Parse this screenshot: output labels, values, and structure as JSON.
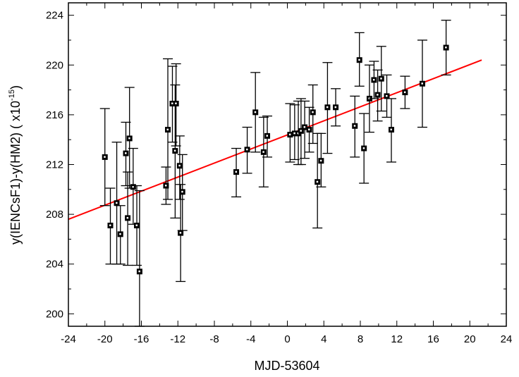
{
  "chart_data": {
    "type": "scatter",
    "title": "",
    "xlabel": "MJD-53604",
    "ylabel_main": "y(IENCsF1)-y(HM2)  ( x10",
    "ylabel_exp": "-15",
    "ylabel_close": ")",
    "xlim": [
      -24,
      24
    ],
    "ylim": [
      199,
      225
    ],
    "xticks": [
      "-24",
      "-20",
      "-16",
      "-12",
      "-8",
      "-4",
      "0",
      "4",
      "8",
      "12",
      "16",
      "20",
      "24"
    ],
    "yticks": [
      "200",
      "204",
      "208",
      "212",
      "216",
      "220",
      "224"
    ],
    "x_minor_step": 2,
    "y_minor_step": 2,
    "grid": false,
    "point_color": "#000000",
    "fit_color": "#ff0000",
    "fit_line": {
      "x": [
        -24,
        21.3
      ],
      "y": [
        207.6,
        220.4
      ]
    },
    "points": [
      {
        "x": -20.0,
        "y": 212.6,
        "ylo": 208.7,
        "yhi": 216.5
      },
      {
        "x": -19.4,
        "y": 207.1,
        "ylo": 204.0,
        "yhi": 210.1
      },
      {
        "x": -18.7,
        "y": 208.9,
        "ylo": 204.0,
        "yhi": 213.8
      },
      {
        "x": -18.3,
        "y": 206.4,
        "ylo": 204.0,
        "yhi": 208.7
      },
      {
        "x": -17.7,
        "y": 212.9,
        "ylo": 210.3,
        "yhi": 215.4
      },
      {
        "x": -17.5,
        "y": 207.7,
        "ylo": 203.9,
        "yhi": 211.4
      },
      {
        "x": -17.3,
        "y": 214.1,
        "ylo": 210.1,
        "yhi": 218.2
      },
      {
        "x": -16.9,
        "y": 210.2,
        "ylo": 207.2,
        "yhi": 213.3
      },
      {
        "x": -16.5,
        "y": 207.1,
        "ylo": 203.9,
        "yhi": 210.3
      },
      {
        "x": -16.2,
        "y": 203.4,
        "ylo": 199.0,
        "yhi": 209.9
      },
      {
        "x": -13.3,
        "y": 210.3,
        "ylo": 208.8,
        "yhi": 211.8
      },
      {
        "x": -13.1,
        "y": 214.8,
        "ylo": 209.2,
        "yhi": 220.5
      },
      {
        "x": -12.6,
        "y": 216.9,
        "ylo": 213.8,
        "yhi": 219.9
      },
      {
        "x": -12.3,
        "y": 213.1,
        "ylo": 207.7,
        "yhi": 218.4
      },
      {
        "x": -12.2,
        "y": 216.9,
        "ylo": 213.5,
        "yhi": 220.1
      },
      {
        "x": -11.8,
        "y": 211.9,
        "ylo": 209.2,
        "yhi": 214.3
      },
      {
        "x": -11.7,
        "y": 206.5,
        "ylo": 202.6,
        "yhi": 210.4
      },
      {
        "x": -11.5,
        "y": 209.8,
        "ylo": 206.7,
        "yhi": 212.8
      },
      {
        "x": -5.6,
        "y": 211.4,
        "ylo": 209.4,
        "yhi": 213.3
      },
      {
        "x": -4.4,
        "y": 213.2,
        "ylo": 211.3,
        "yhi": 215.0
      },
      {
        "x": -3.5,
        "y": 216.2,
        "ylo": 213.0,
        "yhi": 219.4
      },
      {
        "x": -2.6,
        "y": 213.0,
        "ylo": 210.2,
        "yhi": 215.8
      },
      {
        "x": -2.2,
        "y": 214.3,
        "ylo": 212.6,
        "yhi": 215.9
      },
      {
        "x": 0.3,
        "y": 214.4,
        "ylo": 212.2,
        "yhi": 216.9
      },
      {
        "x": 0.8,
        "y": 214.5,
        "ylo": 212.4,
        "yhi": 216.8
      },
      {
        "x": 1.2,
        "y": 214.5,
        "ylo": 212.0,
        "yhi": 217.1
      },
      {
        "x": 1.5,
        "y": 214.7,
        "ylo": 212.0,
        "yhi": 217.3
      },
      {
        "x": 1.9,
        "y": 215.0,
        "ylo": 212.5,
        "yhi": 217.1
      },
      {
        "x": 2.4,
        "y": 214.8,
        "ylo": 213.0,
        "yhi": 216.6
      },
      {
        "x": 2.8,
        "y": 216.2,
        "ylo": 213.7,
        "yhi": 218.4
      },
      {
        "x": 3.3,
        "y": 210.6,
        "ylo": 206.9,
        "yhi": 214.5
      },
      {
        "x": 3.7,
        "y": 212.3,
        "ylo": 210.2,
        "yhi": 214.5
      },
      {
        "x": 4.4,
        "y": 216.6,
        "ylo": 212.9,
        "yhi": 220.2
      },
      {
        "x": 5.3,
        "y": 216.6,
        "ylo": 215.1,
        "yhi": 218.1
      },
      {
        "x": 7.4,
        "y": 215.1,
        "ylo": 212.6,
        "yhi": 217.5
      },
      {
        "x": 7.9,
        "y": 220.4,
        "ylo": 218.3,
        "yhi": 222.6
      },
      {
        "x": 8.4,
        "y": 213.3,
        "ylo": 210.5,
        "yhi": 216.1
      },
      {
        "x": 9.0,
        "y": 217.3,
        "ylo": 214.6,
        "yhi": 220.0
      },
      {
        "x": 9.5,
        "y": 218.8,
        "ylo": 217.3,
        "yhi": 220.3
      },
      {
        "x": 9.9,
        "y": 217.6,
        "ylo": 215.5,
        "yhi": 219.6
      },
      {
        "x": 10.3,
        "y": 218.9,
        "ylo": 216.3,
        "yhi": 221.5
      },
      {
        "x": 10.9,
        "y": 217.5,
        "ylo": 215.8,
        "yhi": 219.2
      },
      {
        "x": 11.4,
        "y": 214.8,
        "ylo": 212.2,
        "yhi": 217.3
      },
      {
        "x": 12.9,
        "y": 217.8,
        "ylo": 216.5,
        "yhi": 219.1
      },
      {
        "x": 14.8,
        "y": 218.5,
        "ylo": 215.0,
        "yhi": 222.0
      },
      {
        "x": 17.4,
        "y": 221.4,
        "ylo": 219.2,
        "yhi": 223.6
      }
    ]
  }
}
